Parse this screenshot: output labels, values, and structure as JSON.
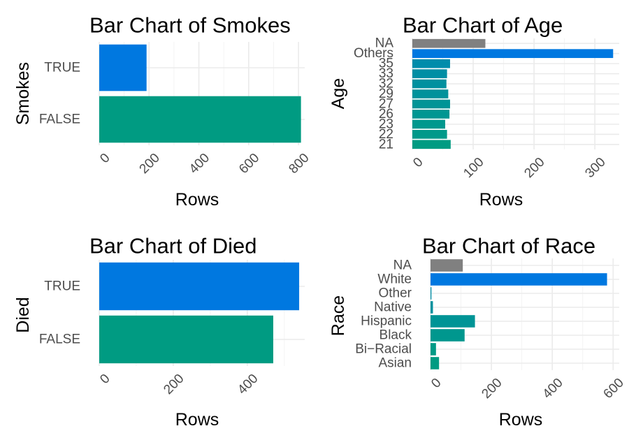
{
  "chart_data": [
    {
      "id": "smokes",
      "type": "bar",
      "orientation": "horizontal",
      "title": "Bar Chart of Smokes",
      "xlabel": "Rows",
      "ylabel": "Smokes",
      "categories": [
        "FALSE",
        "TRUE"
      ],
      "values": [
        810,
        190
      ],
      "colors": [
        "#009b82",
        "#0078e0"
      ],
      "xlim": [
        0,
        825
      ],
      "xticks": [
        0,
        200,
        400,
        600,
        800
      ],
      "grid": true
    },
    {
      "id": "age",
      "type": "bar",
      "orientation": "horizontal",
      "title": "Bar Chart of Age",
      "xlabel": "Rows",
      "ylabel": "Age",
      "categories": [
        "21",
        "22",
        "23",
        "26",
        "27",
        "29",
        "32",
        "33",
        "35",
        "Others",
        "NA"
      ],
      "values": [
        63,
        57,
        54,
        61,
        62,
        59,
        56,
        57,
        62,
        330,
        120
      ],
      "colors": [
        "#009b82",
        "#00998a",
        "#00988e",
        "#009692",
        "#009496",
        "#00929b",
        "#00909f",
        "#008ea4",
        "#008cab",
        "#0078e0",
        "#808080"
      ],
      "xlim": [
        0,
        340
      ],
      "xticks": [
        0,
        100,
        200,
        300
      ],
      "grid": true
    },
    {
      "id": "died",
      "type": "bar",
      "orientation": "horizontal",
      "title": "Bar Chart of Died",
      "xlabel": "Rows",
      "ylabel": "Died",
      "categories": [
        "FALSE",
        "TRUE"
      ],
      "values": [
        470,
        540
      ],
      "colors": [
        "#009b82",
        "#0078e0"
      ],
      "xlim": [
        0,
        555
      ],
      "xticks": [
        0,
        200,
        400
      ],
      "grid": true
    },
    {
      "id": "race",
      "type": "bar",
      "orientation": "horizontal",
      "title": "Bar Chart of Race",
      "xlabel": "Rows",
      "ylabel": "Race",
      "categories": [
        "Asian",
        "Bi−Racial",
        "Black",
        "Hispanic",
        "Native",
        "Other",
        "White",
        "NA"
      ],
      "values": [
        28,
        18,
        112,
        146,
        8,
        3,
        580,
        106
      ],
      "colors": [
        "#009b82",
        "#009a86",
        "#00978e",
        "#009496",
        "#00919e",
        "#008ea6",
        "#0078e0",
        "#808080"
      ],
      "xlim": [
        0,
        620
      ],
      "xticks": [
        0,
        200,
        400,
        600
      ],
      "grid": true
    }
  ]
}
